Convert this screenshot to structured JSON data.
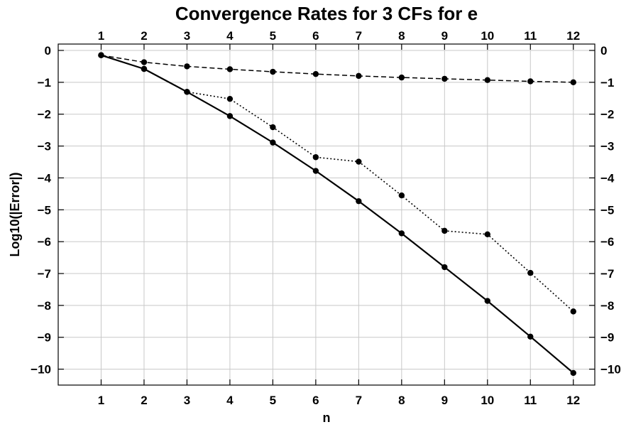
{
  "chart_data": {
    "type": "line",
    "title": "Convergence Rates for 3 CFs for e",
    "xlabel": "n",
    "ylabel": "Log10(|Error|)",
    "x": [
      1,
      2,
      3,
      4,
      5,
      6,
      7,
      8,
      9,
      10,
      11,
      12
    ],
    "x_tick_labels": [
      "1",
      "2",
      "3",
      "4",
      "5",
      "6",
      "7",
      "8",
      "9",
      "10",
      "11",
      "12"
    ],
    "y_tick_values": [
      0,
      -1,
      -2,
      -3,
      -4,
      -5,
      -6,
      -7,
      -8,
      -9,
      -10
    ],
    "y_tick_labels": [
      "0",
      "−1",
      "−2",
      "−3",
      "−4",
      "−5",
      "−6",
      "−7",
      "−8",
      "−9",
      "−10"
    ],
    "xlim": [
      0,
      12.5
    ],
    "ylim": [
      -10.5,
      0.2
    ],
    "grid": true,
    "mirrored_axes": true,
    "series": [
      {
        "style": "dashed",
        "color": "#000000",
        "values": [
          -0.15,
          -0.37,
          -0.5,
          -0.59,
          -0.67,
          -0.74,
          -0.8,
          -0.85,
          -0.89,
          -0.93,
          -0.97,
          -1.0
        ]
      },
      {
        "style": "dotted",
        "color": "#000000",
        "values": [
          -0.15,
          -0.58,
          -1.3,
          -1.52,
          -2.41,
          -3.35,
          -3.49,
          -4.55,
          -5.66,
          -5.77,
          -6.98,
          -8.19
        ]
      },
      {
        "style": "solid",
        "color": "#000000",
        "values": [
          -0.15,
          -0.58,
          -1.3,
          -2.06,
          -2.89,
          -3.78,
          -4.73,
          -5.74,
          -6.8,
          -7.86,
          -8.98,
          -10.12
        ]
      }
    ]
  }
}
